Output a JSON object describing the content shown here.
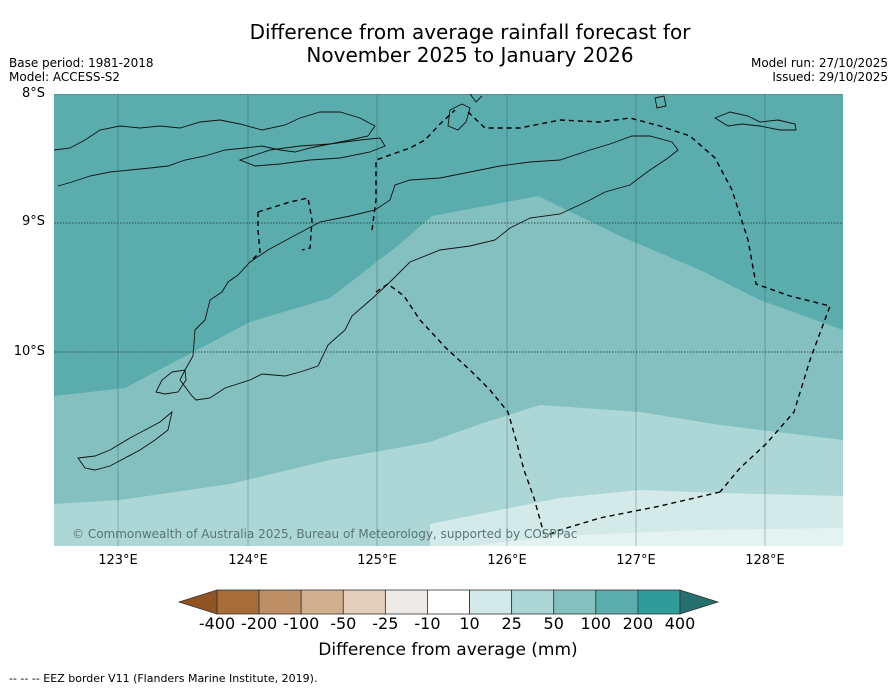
{
  "title": {
    "line1": "Difference from average rainfall forecast for",
    "line2": "November 2025 to January 2026"
  },
  "meta": {
    "base_period": "Base period: 1981-2018",
    "model": "Model: ACCESS-S2",
    "model_run": "Model run: 27/10/2025",
    "issued": "Issued: 29/10/2025"
  },
  "map": {
    "latitude_labels": [
      "8°S",
      "9°S",
      "10°S"
    ],
    "longitude_labels": [
      "123°E",
      "124°E",
      "125°E",
      "126°E",
      "127°E",
      "128°E"
    ],
    "copyright": "© Commonwealth of Australia 2025, Bureau of Meteorology, supported by COSPPac",
    "ocean_color": "#5aacad",
    "zone_colors": [
      "#5aacad",
      "#84c0bf",
      "#acd7d6",
      "#d4eae9"
    ]
  },
  "colorbar": {
    "ticks": [
      "-400",
      "-200",
      "-100",
      "-50",
      "-25",
      "-10",
      "10",
      "25",
      "50",
      "100",
      "200",
      "400"
    ],
    "colors": [
      "#a86c38",
      "#be8e64",
      "#d1b090",
      "#e3cfba",
      "#eeeae7",
      "#ffffff",
      "#d4eae9",
      "#acd7d6",
      "#84c0bf",
      "#5aacad",
      "#319b99"
    ],
    "under_color": "#905323",
    "over_color": "#25706e",
    "label": "Difference from average (mm)"
  },
  "footnote": "--  --  -- EEZ border V11 (Flanders Marine Institute, 2019)."
}
